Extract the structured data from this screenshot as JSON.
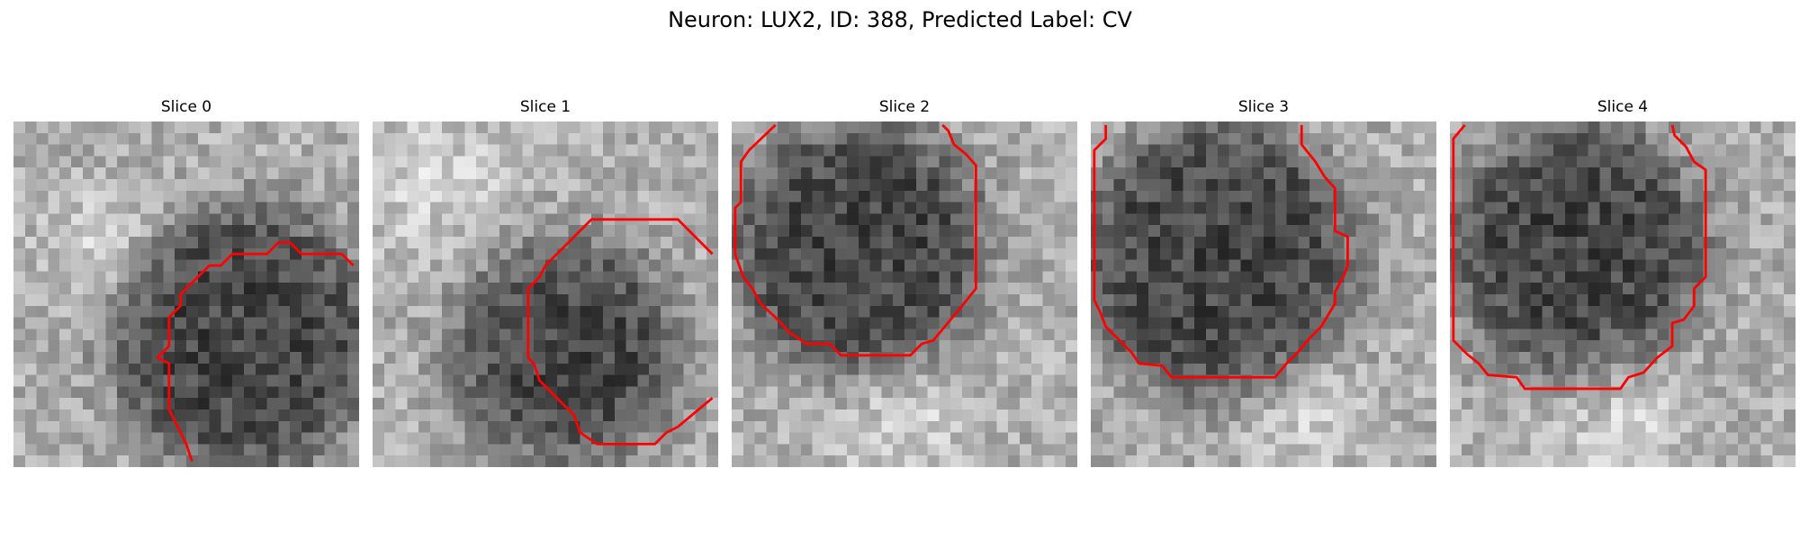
{
  "figure": {
    "title": "Neuron: LUX2, ID: 388, Predicted Label: CV"
  },
  "contour_color": "#ff0000",
  "grid_size": 30,
  "panels": [
    {
      "title": "Slice 0",
      "blob": {
        "cx": 20,
        "cy": 19,
        "r": 11.5,
        "bright_patch": {
          "cx": 8,
          "cy": 11,
          "r": 8
        }
      },
      "contour": [
        [
          15.5,
          29.5
        ],
        [
          15,
          28
        ],
        [
          14,
          26
        ],
        [
          13.5,
          25
        ],
        [
          13.5,
          21
        ],
        [
          12.5,
          20.5
        ],
        [
          13.5,
          19.5
        ],
        [
          13.5,
          17
        ],
        [
          14.5,
          16
        ],
        [
          14.5,
          15
        ],
        [
          16,
          13.5
        ],
        [
          17,
          12.5
        ],
        [
          18,
          12.5
        ],
        [
          19,
          11.5
        ],
        [
          22,
          11.5
        ],
        [
          23,
          10.5
        ],
        [
          24,
          10.5
        ],
        [
          25,
          11.5
        ],
        [
          28.5,
          11.5
        ],
        [
          29.5,
          12.5
        ]
      ]
    },
    {
      "title": "Slice 1",
      "blob": {
        "cx": 17,
        "cy": 20,
        "r": 9.5,
        "bright_patch": {
          "cx": 5,
          "cy": 5,
          "r": 10
        }
      },
      "contour": [
        [
          29.5,
          11.5
        ],
        [
          26.5,
          8.5
        ],
        [
          19,
          8.5
        ],
        [
          17.5,
          10
        ],
        [
          15,
          12.5
        ],
        [
          14.5,
          13.5
        ],
        [
          13.5,
          14.5
        ],
        [
          13.5,
          15.5
        ],
        [
          13.5,
          16
        ],
        [
          13.5,
          18
        ],
        [
          13.5,
          20.5
        ],
        [
          14,
          21
        ],
        [
          14.5,
          22.5
        ],
        [
          15.5,
          23.5
        ],
        [
          16.5,
          24.5
        ],
        [
          17.5,
          25.5
        ],
        [
          18,
          27
        ],
        [
          19.5,
          28
        ],
        [
          24.5,
          28
        ],
        [
          25.5,
          27
        ],
        [
          26.5,
          26.5
        ],
        [
          29.5,
          24
        ]
      ]
    },
    {
      "title": "Slice 2",
      "blob": {
        "cx": 11,
        "cy": 11,
        "r": 11,
        "bright_patch": {
          "cx": 15,
          "cy": 26,
          "r": 9
        }
      },
      "contour": [
        [
          3.8,
          0.3
        ],
        [
          1.5,
          2.5
        ],
        [
          0.8,
          3.5
        ],
        [
          0.8,
          7
        ],
        [
          0.3,
          7.5
        ],
        [
          0.3,
          11.5
        ],
        [
          1,
          13.5
        ],
        [
          1.8,
          14.5
        ],
        [
          2.5,
          15.8
        ],
        [
          3.8,
          17
        ],
        [
          5,
          18.3
        ],
        [
          6.5,
          19.3
        ],
        [
          8.5,
          19.3
        ],
        [
          9.5,
          20.3
        ],
        [
          15.5,
          20.3
        ],
        [
          16.5,
          19.3
        ],
        [
          17.5,
          19
        ],
        [
          18.5,
          17.8
        ],
        [
          20,
          16
        ],
        [
          21.2,
          14.5
        ],
        [
          21.2,
          13.2
        ],
        [
          21.2,
          3.8
        ],
        [
          20.3,
          2.8
        ],
        [
          19.3,
          2
        ],
        [
          18.8,
          0.8
        ],
        [
          18.3,
          0.3
        ]
      ]
    },
    {
      "title": "Slice 3",
      "blob": {
        "cx": 11,
        "cy": 12,
        "r": 12,
        "bright_patch": {
          "cx": 18,
          "cy": 25,
          "r": 8
        }
      },
      "contour": [
        [
          1.3,
          0.3
        ],
        [
          1.3,
          1.5
        ],
        [
          0.3,
          2.5
        ],
        [
          0.3,
          2.8
        ],
        [
          0.3,
          15.5
        ],
        [
          0.8,
          16.5
        ],
        [
          1.3,
          17.8
        ],
        [
          2.5,
          19
        ],
        [
          3.5,
          20
        ],
        [
          4.2,
          21
        ],
        [
          6.2,
          21.2
        ],
        [
          7,
          22.2
        ],
        [
          16,
          22.2
        ],
        [
          17,
          21
        ],
        [
          18,
          20
        ],
        [
          19,
          18.8
        ],
        [
          20,
          17.8
        ],
        [
          21.2,
          15.8
        ],
        [
          21.2,
          14.8
        ],
        [
          22,
          13.3
        ],
        [
          22.3,
          12.5
        ],
        [
          22.3,
          10
        ],
        [
          21.2,
          9.5
        ],
        [
          21.2,
          5.8
        ],
        [
          20.3,
          4.8
        ],
        [
          19.5,
          3.5
        ],
        [
          18.3,
          2
        ],
        [
          18.3,
          0.3
        ]
      ]
    },
    {
      "title": "Slice 4",
      "blob": {
        "cx": 11,
        "cy": 11,
        "r": 11,
        "bright_patch": {
          "cx": 15,
          "cy": 26,
          "r": 9
        }
      },
      "contour": [
        [
          1.3,
          0.3
        ],
        [
          0.3,
          1.5
        ],
        [
          0.3,
          19
        ],
        [
          1.5,
          20.2
        ],
        [
          2.5,
          21
        ],
        [
          3.3,
          22
        ],
        [
          5.8,
          22.2
        ],
        [
          6.5,
          23.2
        ],
        [
          14.8,
          23.2
        ],
        [
          15.5,
          22.2
        ],
        [
          16.8,
          21.8
        ],
        [
          18,
          20.5
        ],
        [
          19.3,
          19.5
        ],
        [
          19.3,
          17.5
        ],
        [
          20.3,
          17.2
        ],
        [
          21.2,
          16
        ],
        [
          21.2,
          14.5
        ],
        [
          22.2,
          13.5
        ],
        [
          22.2,
          4.2
        ],
        [
          21.2,
          3.5
        ],
        [
          20.5,
          2.2
        ],
        [
          19.5,
          1.2
        ],
        [
          19.3,
          0.3
        ]
      ]
    }
  ]
}
